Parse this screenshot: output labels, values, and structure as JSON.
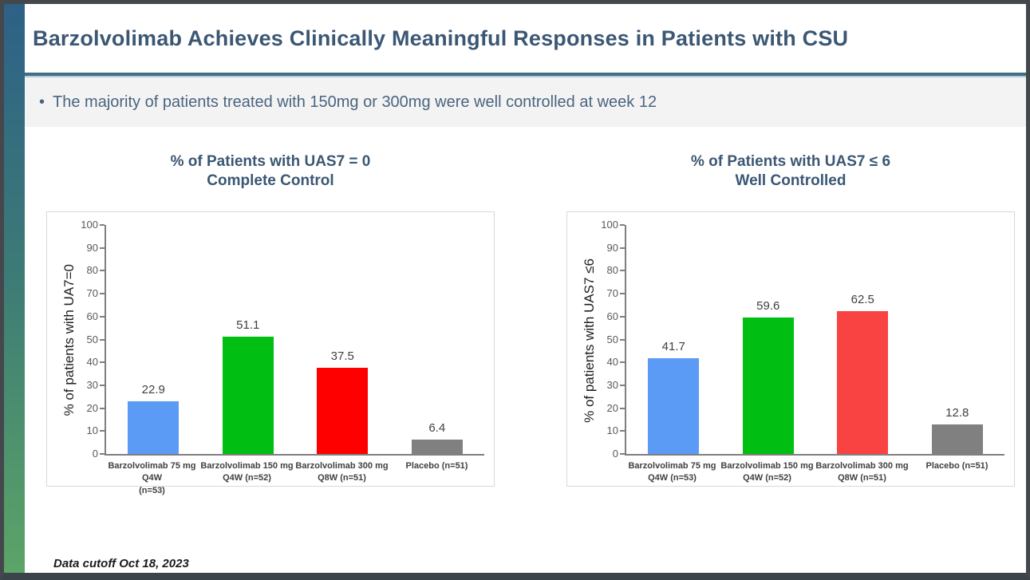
{
  "slide": {
    "title": "Barzolvolimab Achieves Clinically Meaningful Responses in Patients with CSU",
    "bullet_marker": "•",
    "bullet": "The majority of patients treated with 150mg or 300mg were well controlled at week 12",
    "footer": "Data cutoff Oct 18, 2023"
  },
  "colors": {
    "accent_teal": "#3d7087",
    "accent_teal_light": "#b3c9d7",
    "title_text": "#3b5774",
    "sidebar_gradient_top": "#2d6186",
    "sidebar_gradient_bottom": "#5ca467",
    "bar_blue": "#5b9bf5",
    "bar_green": "#00bf12",
    "bar_red_left": "#fe0000",
    "bar_red_right": "#f94343",
    "bar_gray": "#808080"
  },
  "chart_data": [
    {
      "type": "bar",
      "title": "% of Patients with UAS7 = 0",
      "subtitle": "Complete Control",
      "ylabel": "% of patients with UA7=0",
      "xlabel": "",
      "ylim": [
        0,
        100
      ],
      "ytick_step": 10,
      "grid": false,
      "legend_position": "none",
      "categories": [
        "Barzolvolimab 75 mg Q4W\n(n=53)",
        "Barzolvolimab 150 mg\nQ4W (n=52)",
        "Barzolvolimab 300 mg\nQ8W (n=51)",
        "Placebo (n=51)"
      ],
      "values": [
        22.9,
        51.1,
        37.5,
        6.4
      ],
      "bar_colors": [
        "#5b9bf5",
        "#00bf12",
        "#fe0000",
        "#808080"
      ]
    },
    {
      "type": "bar",
      "title": "% of Patients with UAS7 ≤ 6",
      "subtitle": "Well Controlled",
      "ylabel": "% of patients with UAS7 ≤6",
      "xlabel": "",
      "ylim": [
        0,
        100
      ],
      "ytick_step": 10,
      "grid": false,
      "legend_position": "none",
      "categories": [
        "Barzolvolimab 75 mg\nQ4W (n=53)",
        "Barzolvolimab 150 mg\nQ4W (n=52)",
        "Barzolvolimab 300 mg\nQ8W (n=51)",
        "Placebo (n=51)"
      ],
      "values": [
        41.7,
        59.6,
        62.5,
        12.8
      ],
      "bar_colors": [
        "#5b9bf5",
        "#00bf12",
        "#f94343",
        "#808080"
      ]
    }
  ]
}
